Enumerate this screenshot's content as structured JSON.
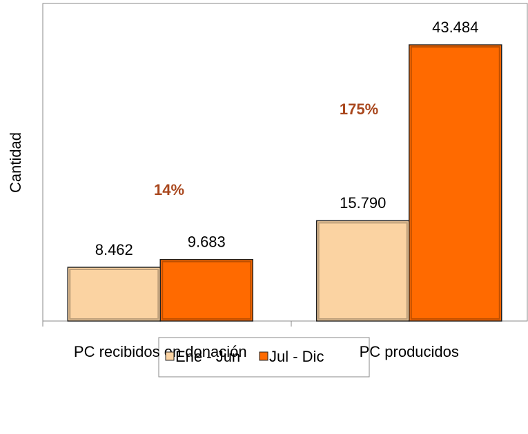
{
  "chart_data": {
    "type": "bar",
    "y_label": "Cantidad",
    "categories": [
      "PC recibidos en donación",
      "PC producidos"
    ],
    "series": [
      {
        "name": "Ene - Jun",
        "color": "#fbd3a2",
        "values": [
          8462,
          15790
        ],
        "value_labels": [
          "8.462",
          "15.790"
        ]
      },
      {
        "name": "Jul - Dic",
        "color": "#ff6a00",
        "values": [
          9683,
          43484
        ],
        "value_labels": [
          "9.683",
          "43.484"
        ]
      }
    ],
    "annotations": [
      {
        "text": "14%",
        "color": "#a9471d"
      },
      {
        "text": "175%",
        "color": "#a9471d"
      }
    ],
    "ylim": [
      0,
      50000
    ],
    "legend": "bottom"
  }
}
